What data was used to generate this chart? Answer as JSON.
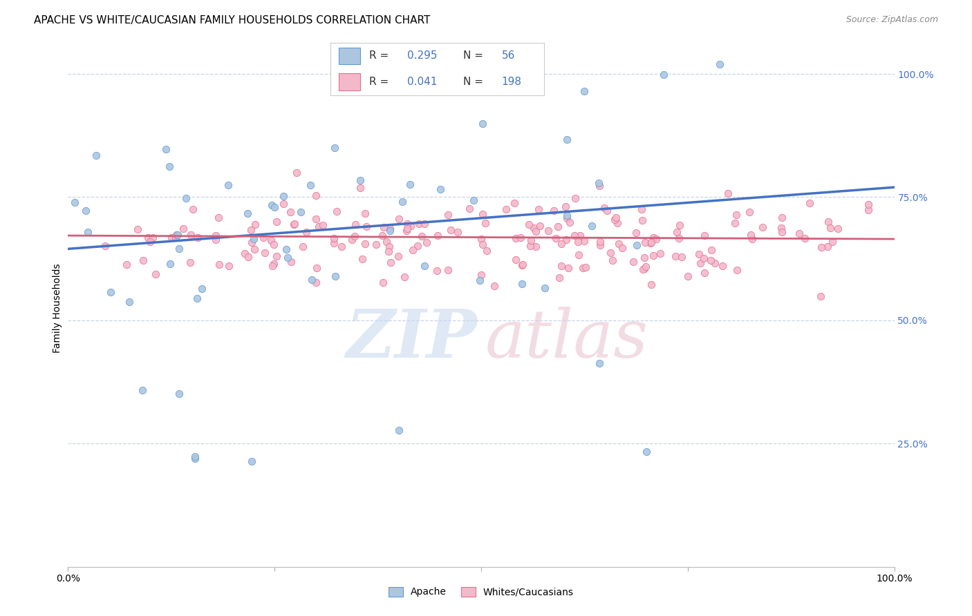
{
  "title": "APACHE VS WHITE/CAUCASIAN FAMILY HOUSEHOLDS CORRELATION CHART",
  "source": "Source: ZipAtlas.com",
  "ylabel": "Family Households",
  "ytick_labels": [
    "25.0%",
    "50.0%",
    "75.0%",
    "100.0%"
  ],
  "ytick_values": [
    0.25,
    0.5,
    0.75,
    1.0
  ],
  "xlim": [
    0.0,
    1.0
  ],
  "ylim": [
    0.0,
    1.05
  ],
  "apache_R": 0.295,
  "apache_N": 56,
  "white_R": 0.041,
  "white_N": 198,
  "apache_color": "#adc6e0",
  "apache_edge_color": "#5b9bd5",
  "apache_line_color": "#4472c4",
  "white_color": "#f4b8cb",
  "white_edge_color": "#e07090",
  "white_line_color": "#d0607a",
  "background_color": "#ffffff",
  "title_fontsize": 11,
  "source_fontsize": 9,
  "axis_label_fontsize": 10,
  "ytick_color": "#4472c4",
  "grid_color": "#c8d4e8",
  "apache_line_start_y": 0.645,
  "apache_line_end_y": 0.77,
  "white_line_start_y": 0.672,
  "white_line_end_y": 0.665
}
